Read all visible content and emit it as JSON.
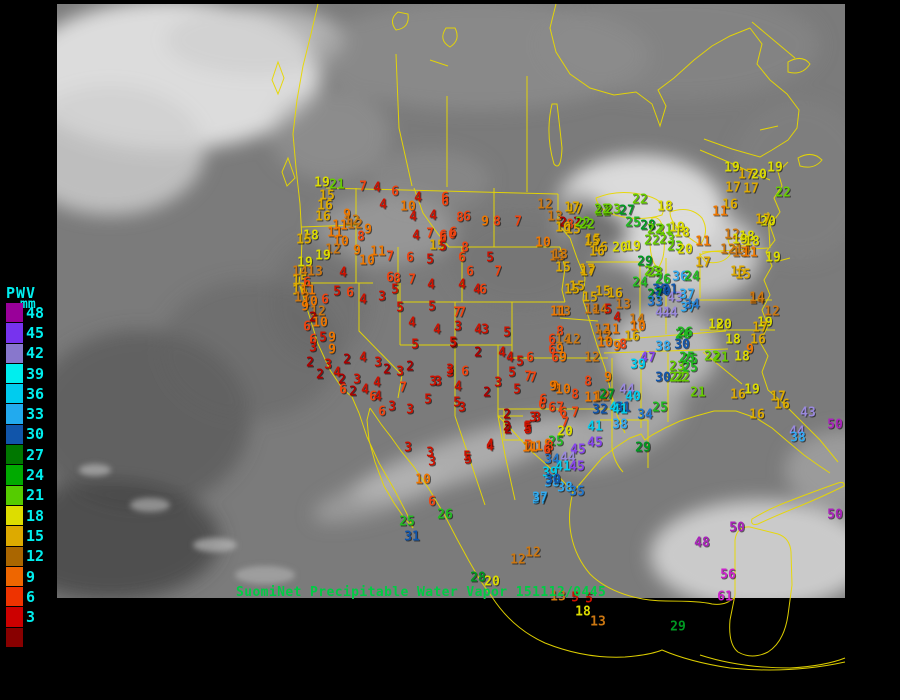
{
  "caption": {
    "text": "SuomiNet Precipitable Water Vapor 151112/0445",
    "color": "#00cc44"
  },
  "legend": {
    "title": "PWV",
    "unit": "mm",
    "label_color": "#00eeee",
    "entries": [
      {
        "label": "48",
        "color": "#990099"
      },
      {
        "label": "45",
        "color": "#7733ee"
      },
      {
        "label": "42",
        "color": "#8877cc"
      },
      {
        "label": "39",
        "color": "#00eeee"
      },
      {
        "label": "36",
        "color": "#00ccee"
      },
      {
        "label": "33",
        "color": "#22aaee"
      },
      {
        "label": "30",
        "color": "#1155aa"
      },
      {
        "label": "27",
        "color": "#007700"
      },
      {
        "label": "24",
        "color": "#00aa00"
      },
      {
        "label": "21",
        "color": "#55cc00"
      },
      {
        "label": "18",
        "color": "#dddd00"
      },
      {
        "label": "15",
        "color": "#ddaa00"
      },
      {
        "label": "12",
        "color": "#aa6600"
      },
      {
        "label": "9",
        "color": "#ee6600"
      },
      {
        "label": "6",
        "color": "#ee3300"
      },
      {
        "label": "3",
        "color": "#cc0000"
      },
      {
        "label": "",
        "color": "#880000"
      }
    ]
  },
  "map": {
    "outline_color": "#e8d800",
    "background": "#000000",
    "satellite_base": "#7b7b7b"
  },
  "value_colors": [
    {
      "min": 54,
      "color": "#cc22cc"
    },
    {
      "min": 48,
      "color": "#aa22bb"
    },
    {
      "min": 45,
      "color": "#8844ee"
    },
    {
      "min": 42,
      "color": "#9988dd"
    },
    {
      "min": 39,
      "color": "#00ccee"
    },
    {
      "min": 36,
      "color": "#33aaee"
    },
    {
      "min": 33,
      "color": "#2277cc"
    },
    {
      "min": 30,
      "color": "#1155aa"
    },
    {
      "min": 27,
      "color": "#009922"
    },
    {
      "min": 24,
      "color": "#22bb22"
    },
    {
      "min": 21,
      "color": "#66cc00"
    },
    {
      "min": 18,
      "color": "#dddd00"
    },
    {
      "min": 15,
      "color": "#ddaa00"
    },
    {
      "min": 12,
      "color": "#cc7711"
    },
    {
      "min": 9,
      "color": "#ee7700"
    },
    {
      "min": 6,
      "color": "#ee4411"
    },
    {
      "min": 3,
      "color": "#cc1100"
    },
    {
      "min": 0,
      "color": "#aa0000"
    }
  ],
  "stations": [
    [
      322,
      183,
      19
    ],
    [
      337,
      185,
      21
    ],
    [
      363,
      187,
      7
    ],
    [
      377,
      188,
      4
    ],
    [
      395,
      192,
      6
    ],
    [
      327,
      196,
      15
    ],
    [
      325,
      206,
      16
    ],
    [
      418,
      198,
      4
    ],
    [
      445,
      198,
      6
    ],
    [
      383,
      205,
      4
    ],
    [
      408,
      207,
      10
    ],
    [
      323,
      217,
      16
    ],
    [
      347,
      215,
      9
    ],
    [
      352,
      221,
      12
    ],
    [
      413,
      217,
      4
    ],
    [
      433,
      216,
      4
    ],
    [
      460,
      218,
      8
    ],
    [
      340,
      226,
      11
    ],
    [
      355,
      225,
      12
    ],
    [
      368,
      230,
      9
    ],
    [
      361,
      237,
      8
    ],
    [
      311,
      236,
      18
    ],
    [
      304,
      240,
      15
    ],
    [
      335,
      233,
      11
    ],
    [
      341,
      242,
      10
    ],
    [
      416,
      236,
      4
    ],
    [
      430,
      234,
      7
    ],
    [
      443,
      236,
      6
    ],
    [
      452,
      235,
      6
    ],
    [
      437,
      246,
      15
    ],
    [
      333,
      250,
      12
    ],
    [
      357,
      251,
      9
    ],
    [
      323,
      256,
      19
    ],
    [
      378,
      252,
      11
    ],
    [
      367,
      261,
      10
    ],
    [
      390,
      257,
      7
    ],
    [
      410,
      258,
      6
    ],
    [
      430,
      260,
      5
    ],
    [
      305,
      263,
      19
    ],
    [
      300,
      272,
      14
    ],
    [
      315,
      272,
      13
    ],
    [
      300,
      281,
      15
    ],
    [
      307,
      283,
      6
    ],
    [
      343,
      273,
      4
    ],
    [
      390,
      278,
      6
    ],
    [
      397,
      279,
      8
    ],
    [
      412,
      280,
      7
    ],
    [
      431,
      285,
      4
    ],
    [
      300,
      291,
      16
    ],
    [
      308,
      291,
      11
    ],
    [
      337,
      292,
      5
    ],
    [
      350,
      293,
      6
    ],
    [
      302,
      298,
      13
    ],
    [
      310,
      302,
      10
    ],
    [
      325,
      300,
      6
    ],
    [
      363,
      300,
      4
    ],
    [
      382,
      297,
      3
    ],
    [
      395,
      290,
      5
    ],
    [
      305,
      307,
      9
    ],
    [
      318,
      312,
      12
    ],
    [
      313,
      318,
      2
    ],
    [
      320,
      323,
      10
    ],
    [
      307,
      327,
      6
    ],
    [
      400,
      308,
      5
    ],
    [
      412,
      323,
      4
    ],
    [
      432,
      307,
      5
    ],
    [
      437,
      330,
      4
    ],
    [
      457,
      313,
      7
    ],
    [
      462,
      313,
      7
    ],
    [
      458,
      327,
      3
    ],
    [
      415,
      345,
      5
    ],
    [
      454,
      344,
      5
    ],
    [
      313,
      340,
      6
    ],
    [
      323,
      338,
      5
    ],
    [
      332,
      338,
      9
    ],
    [
      313,
      348,
      3
    ],
    [
      332,
      350,
      9
    ],
    [
      347,
      360,
      2
    ],
    [
      363,
      358,
      4
    ],
    [
      310,
      363,
      2
    ],
    [
      328,
      365,
      3
    ],
    [
      378,
      363,
      3
    ],
    [
      387,
      370,
      2
    ],
    [
      400,
      372,
      3
    ],
    [
      410,
      367,
      2
    ],
    [
      450,
      373,
      3
    ],
    [
      320,
      375,
      2
    ],
    [
      337,
      373,
      4
    ],
    [
      342,
      380,
      2
    ],
    [
      357,
      380,
      3
    ],
    [
      377,
      383,
      4
    ],
    [
      403,
      388,
      7
    ],
    [
      438,
      382,
      3
    ],
    [
      343,
      390,
      6
    ],
    [
      353,
      392,
      2
    ],
    [
      365,
      390,
      4
    ],
    [
      373,
      397,
      6
    ],
    [
      378,
      397,
      4
    ],
    [
      428,
      400,
      5
    ],
    [
      392,
      407,
      3
    ],
    [
      410,
      410,
      3
    ],
    [
      457,
      403,
      5
    ],
    [
      462,
      408,
      3
    ],
    [
      382,
      412,
      6
    ],
    [
      445,
      202,
      6
    ],
    [
      467,
      217,
      6
    ],
    [
      485,
      222,
      9
    ],
    [
      497,
      222,
      8
    ],
    [
      518,
      222,
      7
    ],
    [
      545,
      205,
      12
    ],
    [
      555,
      217,
      13
    ],
    [
      575,
      210,
      17
    ],
    [
      563,
      223,
      2
    ],
    [
      577,
      223,
      2
    ],
    [
      570,
      225,
      8
    ],
    [
      563,
      228,
      16
    ],
    [
      573,
      230,
      15
    ],
    [
      583,
      223,
      22
    ],
    [
      603,
      212,
      22
    ],
    [
      453,
      233,
      6
    ],
    [
      443,
      238,
      6
    ],
    [
      443,
      247,
      5
    ],
    [
      465,
      248,
      8
    ],
    [
      462,
      258,
      6
    ],
    [
      490,
      258,
      5
    ],
    [
      543,
      243,
      10
    ],
    [
      557,
      257,
      13
    ],
    [
      593,
      240,
      15
    ],
    [
      600,
      248,
      16
    ],
    [
      563,
      268,
      15
    ],
    [
      587,
      270,
      17
    ],
    [
      470,
      272,
      6
    ],
    [
      498,
      272,
      7
    ],
    [
      462,
      285,
      4
    ],
    [
      477,
      290,
      4
    ],
    [
      483,
      290,
      6
    ],
    [
      577,
      287,
      15
    ],
    [
      572,
      208,
      17
    ],
    [
      640,
      200,
      22
    ],
    [
      602,
      210,
      22
    ],
    [
      613,
      210,
      23
    ],
    [
      627,
      211,
      27
    ],
    [
      665,
      207,
      18
    ],
    [
      730,
      205,
      16
    ],
    [
      720,
      212,
      11
    ],
    [
      633,
      223,
      25
    ],
    [
      648,
      226,
      28
    ],
    [
      655,
      230,
      22
    ],
    [
      665,
      230,
      21
    ],
    [
      677,
      228,
      19
    ],
    [
      682,
      233,
      18
    ],
    [
      587,
      225,
      22
    ],
    [
      592,
      242,
      15
    ],
    [
      597,
      252,
      16
    ],
    [
      560,
      255,
      13
    ],
    [
      652,
      241,
      22
    ],
    [
      667,
      240,
      23
    ],
    [
      732,
      235,
      12
    ],
    [
      747,
      237,
      18
    ],
    [
      620,
      248,
      20
    ],
    [
      633,
      247,
      19
    ],
    [
      675,
      247,
      23
    ],
    [
      685,
      250,
      20
    ],
    [
      703,
      242,
      11
    ],
    [
      728,
      250,
      12
    ],
    [
      743,
      250,
      14
    ],
    [
      645,
      262,
      29
    ],
    [
      703,
      263,
      17
    ],
    [
      652,
      272,
      23
    ],
    [
      680,
      277,
      36
    ],
    [
      692,
      277,
      24
    ],
    [
      738,
      272,
      15
    ],
    [
      588,
      272,
      17
    ],
    [
      655,
      273,
      23
    ],
    [
      663,
      280,
      26
    ],
    [
      640,
      283,
      24
    ],
    [
      660,
      290,
      30
    ],
    [
      670,
      290,
      31
    ],
    [
      572,
      290,
      15
    ],
    [
      603,
      292,
      15
    ],
    [
      615,
      294,
      16
    ],
    [
      732,
      168,
      19
    ],
    [
      746,
      175,
      17
    ],
    [
      759,
      175,
      20
    ],
    [
      733,
      188,
      17
    ],
    [
      751,
      189,
      17
    ],
    [
      775,
      168,
      19
    ],
    [
      783,
      193,
      22
    ],
    [
      768,
      222,
      20
    ],
    [
      763,
      220,
      17
    ],
    [
      740,
      240,
      19
    ],
    [
      752,
      242,
      18
    ],
    [
      740,
      253,
      13
    ],
    [
      750,
      253,
      11
    ],
    [
      773,
      258,
      19
    ],
    [
      743,
      275,
      15
    ],
    [
      757,
      300,
      14
    ],
    [
      590,
      298,
      15
    ],
    [
      563,
      312,
      13
    ],
    [
      558,
      312,
      11
    ],
    [
      592,
      310,
      14
    ],
    [
      600,
      310,
      14
    ],
    [
      608,
      310,
      5
    ],
    [
      623,
      305,
      13
    ],
    [
      617,
      318,
      4
    ],
    [
      637,
      320,
      14
    ],
    [
      602,
      330,
      12
    ],
    [
      612,
      330,
      11
    ],
    [
      604,
      336,
      12
    ],
    [
      638,
      327,
      10
    ],
    [
      632,
      337,
      16
    ],
    [
      605,
      343,
      10
    ],
    [
      617,
      347,
      9
    ],
    [
      623,
      345,
      8
    ],
    [
      663,
      347,
      38
    ],
    [
      683,
      335,
      26
    ],
    [
      663,
      292,
      30
    ],
    [
      655,
      295,
      27
    ],
    [
      655,
      302,
      33
    ],
    [
      675,
      298,
      43
    ],
    [
      687,
      295,
      37
    ],
    [
      663,
      313,
      42
    ],
    [
      670,
      313,
      44
    ],
    [
      688,
      308,
      37
    ],
    [
      560,
      332,
      8
    ],
    [
      552,
      340,
      6
    ],
    [
      563,
      340,
      14
    ],
    [
      573,
      340,
      12
    ],
    [
      552,
      350,
      6
    ],
    [
      560,
      350,
      9
    ],
    [
      555,
      358,
      6
    ],
    [
      563,
      358,
      9
    ],
    [
      592,
      358,
      12
    ],
    [
      530,
      358,
      6
    ],
    [
      520,
      362,
      5
    ],
    [
      648,
      358,
      47
    ],
    [
      638,
      365,
      39
    ],
    [
      690,
      360,
      25
    ],
    [
      677,
      367,
      23
    ],
    [
      663,
      378,
      30
    ],
    [
      677,
      378,
      22
    ],
    [
      528,
      377,
      7
    ],
    [
      555,
      387,
      9
    ],
    [
      588,
      382,
      8
    ],
    [
      608,
      378,
      9
    ],
    [
      563,
      390,
      10
    ],
    [
      575,
      395,
      8
    ],
    [
      592,
      398,
      11
    ],
    [
      602,
      397,
      12
    ],
    [
      607,
      395,
      27
    ],
    [
      627,
      390,
      44
    ],
    [
      633,
      397,
      40
    ],
    [
      542,
      405,
      6
    ],
    [
      552,
      408,
      6
    ],
    [
      560,
      408,
      7
    ],
    [
      600,
      410,
      32
    ],
    [
      617,
      408,
      41
    ],
    [
      623,
      408,
      31
    ],
    [
      645,
      415,
      34
    ],
    [
      692,
      305,
      34
    ],
    [
      757,
      298,
      14
    ],
    [
      772,
      312,
      12
    ],
    [
      765,
      323,
      19
    ],
    [
      716,
      325,
      18
    ],
    [
      724,
      325,
      20
    ],
    [
      760,
      328,
      17
    ],
    [
      685,
      333,
      26
    ],
    [
      733,
      340,
      18
    ],
    [
      758,
      340,
      16
    ],
    [
      682,
      345,
      30
    ],
    [
      750,
      350,
      9
    ],
    [
      712,
      357,
      22
    ],
    [
      721,
      358,
      21
    ],
    [
      742,
      357,
      18
    ],
    [
      687,
      358,
      25
    ],
    [
      690,
      368,
      25
    ],
    [
      682,
      378,
      22
    ],
    [
      698,
      393,
      21
    ],
    [
      738,
      395,
      16
    ],
    [
      752,
      390,
      19
    ],
    [
      778,
      397,
      17
    ],
    [
      782,
      405,
      16
    ],
    [
      757,
      415,
      16
    ],
    [
      808,
      413,
      43
    ],
    [
      835,
      425,
      50
    ],
    [
      797,
      432,
      44
    ],
    [
      798,
      438,
      38
    ],
    [
      478,
      330,
      4
    ],
    [
      485,
      330,
      3
    ],
    [
      507,
      333,
      5
    ],
    [
      453,
      343,
      5
    ],
    [
      478,
      353,
      2
    ],
    [
      502,
      353,
      4
    ],
    [
      510,
      358,
      4
    ],
    [
      450,
      370,
      3
    ],
    [
      465,
      372,
      6
    ],
    [
      512,
      373,
      5
    ],
    [
      533,
      378,
      7
    ],
    [
      433,
      382,
      3
    ],
    [
      458,
      387,
      4
    ],
    [
      498,
      383,
      3
    ],
    [
      517,
      390,
      5
    ],
    [
      553,
      387,
      9
    ],
    [
      487,
      393,
      2
    ],
    [
      543,
      400,
      6
    ],
    [
      507,
      415,
      2
    ],
    [
      537,
      418,
      3
    ],
    [
      528,
      427,
      5
    ],
    [
      507,
      427,
      2
    ],
    [
      490,
      445,
      4
    ],
    [
      528,
      446,
      7
    ],
    [
      535,
      447,
      11
    ],
    [
      548,
      445,
      9
    ],
    [
      548,
      452,
      6
    ],
    [
      556,
      442,
      25
    ],
    [
      467,
      457,
      5
    ],
    [
      430,
      453,
      3
    ],
    [
      563,
      413,
      6
    ],
    [
      575,
      413,
      7
    ],
    [
      533,
      418,
      3
    ],
    [
      527,
      428,
      5
    ],
    [
      565,
      423,
      7
    ],
    [
      565,
      432,
      20
    ],
    [
      620,
      410,
      41
    ],
    [
      595,
      427,
      41
    ],
    [
      620,
      425,
      38
    ],
    [
      550,
      447,
      8
    ],
    [
      578,
      450,
      45
    ],
    [
      595,
      443,
      45
    ],
    [
      552,
      460,
      34
    ],
    [
      568,
      458,
      44
    ],
    [
      563,
      467,
      41
    ],
    [
      577,
      467,
      45
    ],
    [
      550,
      473,
      39
    ],
    [
      552,
      483,
      38
    ],
    [
      565,
      488,
      38
    ],
    [
      577,
      492,
      35
    ],
    [
      540,
      500,
      37
    ],
    [
      643,
      448,
      29
    ],
    [
      660,
      408,
      25
    ],
    [
      408,
      448,
      3
    ],
    [
      490,
      447,
      4
    ],
    [
      508,
      430,
      2
    ],
    [
      528,
      430,
      5
    ],
    [
      432,
      462,
      3
    ],
    [
      468,
      460,
      5
    ],
    [
      530,
      448,
      11
    ],
    [
      547,
      450,
      6
    ],
    [
      553,
      480,
      30
    ],
    [
      423,
      480,
      10
    ],
    [
      540,
      498,
      37
    ],
    [
      432,
      502,
      6
    ],
    [
      445,
      515,
      26
    ],
    [
      407,
      522,
      25
    ],
    [
      412,
      537,
      31
    ],
    [
      518,
      560,
      12
    ],
    [
      533,
      553,
      12
    ],
    [
      478,
      578,
      28
    ],
    [
      492,
      582,
      20
    ],
    [
      558,
      597,
      13
    ],
    [
      575,
      598,
      5
    ],
    [
      589,
      599,
      5
    ],
    [
      583,
      612,
      18
    ],
    [
      598,
      622,
      13
    ],
    [
      678,
      627,
      29
    ],
    [
      725,
      597,
      61
    ],
    [
      728,
      575,
      56
    ],
    [
      737,
      528,
      50
    ],
    [
      702,
      543,
      48
    ],
    [
      835,
      515,
      50
    ]
  ]
}
